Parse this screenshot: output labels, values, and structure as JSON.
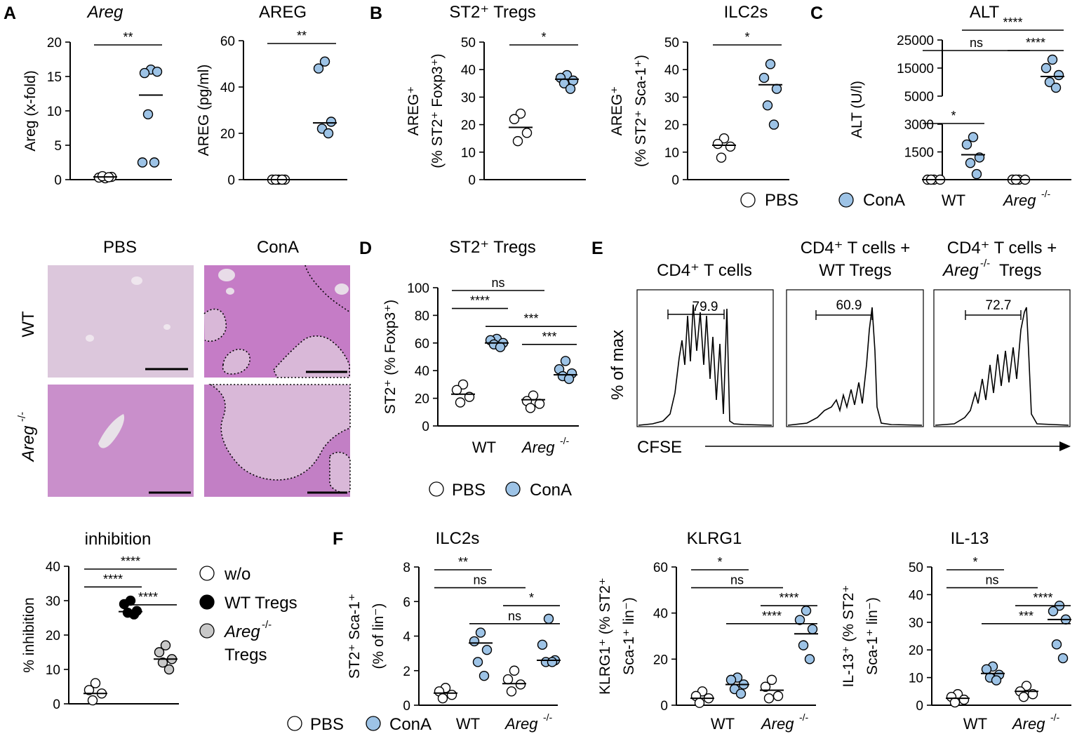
{
  "panel_labels": {
    "A": "A",
    "B": "B",
    "C": "C",
    "D": "D",
    "E": "E",
    "F": "F"
  },
  "legend": {
    "pbs": "PBS",
    "cona": "ConA",
    "wo": "w/o",
    "wt_tregs": "WT Tregs",
    "areg_tregs_1": "Areg",
    "areg_tregs_sup": "-/-",
    "areg_tregs_2": "Tregs"
  },
  "group_labels": {
    "wt": "WT",
    "areg": "Areg",
    "ko": "-/-"
  },
  "histology": {
    "col_pbs": "PBS",
    "col_cona": "ConA",
    "row_wt": "WT",
    "row_areg": "Areg",
    "row_areg_sup": "-/-"
  },
  "colors": {
    "pbs": "#ffffff",
    "cona": "#9dc3e6",
    "wt_tregs": "#000000",
    "areg_tregs": "#c8c8c8",
    "he_pink": "#d9b8d8",
    "he_dark": "#c285c8"
  },
  "flow": {
    "titles": {
      "p1": "CD4⁺ T cells",
      "p2a": "CD4⁺ T cells +",
      "p2b": "WT Tregs",
      "p3a": "CD4⁺ T cells +",
      "p3b": "Areg",
      "p3sup": "-/-",
      "p3c": "Tregs"
    },
    "gates": [
      "79.9",
      "60.9",
      "72.7"
    ],
    "ylabel": "% of max",
    "xlabel": "CFSE"
  },
  "chart_data": [
    {
      "id": "a_areg_mrna",
      "type": "scatter",
      "title": "Areg",
      "ylabel": "Areg (x-fold)",
      "ylim": [
        0,
        20
      ],
      "yticks": [
        0,
        5,
        10,
        15,
        20
      ],
      "groups": [
        {
          "name": "PBS",
          "values": [
            0.2,
            0.3,
            0.4,
            0.5,
            0.35
          ],
          "mean": 0.4
        },
        {
          "name": "ConA",
          "values": [
            16,
            15.5,
            15.7,
            9.5,
            2.5,
            2.5
          ],
          "mean": 12.3
        }
      ],
      "sig": [
        {
          "from": 0,
          "to": 1,
          "label": "**"
        }
      ]
    },
    {
      "id": "a_areg_protein",
      "type": "scatter",
      "title": "AREG",
      "ylabel": "AREG (pg/ml)",
      "ylim": [
        0,
        60
      ],
      "yticks": [
        0,
        20,
        40,
        60
      ],
      "groups": [
        {
          "name": "PBS",
          "values": [
            0,
            0,
            0,
            0,
            0
          ],
          "mean": 0
        },
        {
          "name": "ConA",
          "values": [
            51,
            48,
            25,
            22,
            20
          ],
          "mean": 24.5
        }
      ],
      "sig": [
        {
          "from": 0,
          "to": 1,
          "label": "**"
        }
      ]
    },
    {
      "id": "b_st2_tregs",
      "type": "scatter",
      "title": "ST2⁺ Tregs",
      "ylabel_1": "AREG⁺",
      "ylabel_2": "(% ST2⁺ Foxp3⁺)",
      "ylim": [
        0,
        50
      ],
      "yticks": [
        0,
        10,
        20,
        30,
        40,
        50
      ],
      "groups": [
        {
          "name": "PBS",
          "values": [
            24,
            22,
            17,
            14
          ],
          "mean": 19
        },
        {
          "name": "ConA",
          "values": [
            38,
            37,
            36,
            35,
            33
          ],
          "mean": 36.5
        }
      ],
      "sig": [
        {
          "from": 0,
          "to": 1,
          "label": "*"
        }
      ]
    },
    {
      "id": "b_ilc2s",
      "type": "scatter",
      "title": "ILC2s",
      "ylabel_1": "AREG⁺",
      "ylabel_2": "(% ST2⁺ Sca-1⁺)",
      "ylim": [
        0,
        50
      ],
      "yticks": [
        0,
        10,
        20,
        30,
        40,
        50
      ],
      "groups": [
        {
          "name": "PBS",
          "values": [
            15,
            13,
            12,
            8
          ],
          "mean": 12.5
        },
        {
          "name": "ConA",
          "values": [
            42,
            37,
            33,
            27,
            20
          ],
          "mean": 34.5
        }
      ],
      "sig": [
        {
          "from": 0,
          "to": 1,
          "label": "*"
        }
      ]
    },
    {
      "id": "c_alt",
      "type": "scatter",
      "title": "ALT",
      "ylabel": "ALT (U/l)",
      "yscale": "broken",
      "yticks": [
        0,
        1500,
        3000,
        5000,
        15000,
        25000
      ],
      "groups": [
        {
          "name": "WT PBS",
          "values": [
            0,
            0,
            0,
            0
          ],
          "mean": 0
        },
        {
          "name": "WT ConA",
          "values": [
            2300,
            1900,
            1200,
            900,
            300
          ],
          "mean": 1350
        },
        {
          "name": "Areg-/- PBS",
          "values": [
            0,
            0,
            0,
            0
          ],
          "mean": 0
        },
        {
          "name": "Areg-/- ConA",
          "values": [
            18000,
            15000,
            12500,
            10000,
            8000
          ],
          "mean": 12000
        }
      ],
      "sig": [
        {
          "from": 0,
          "to": 1,
          "label": "*"
        },
        {
          "from": 0,
          "to": 2,
          "label": "ns"
        },
        {
          "from": 2,
          "to": 3,
          "label": "****"
        },
        {
          "from": 1,
          "to": 3,
          "label": "****"
        }
      ]
    },
    {
      "id": "d_st2_tregs",
      "type": "scatter",
      "title": "ST2⁺ Tregs",
      "ylabel": "ST2⁺ (% Foxp3⁺)",
      "ylim": [
        0,
        100
      ],
      "yticks": [
        0,
        20,
        40,
        60,
        80,
        100
      ],
      "groups": [
        {
          "name": "WT PBS",
          "values": [
            30,
            26,
            21,
            17
          ],
          "mean": 23
        },
        {
          "name": "WT ConA",
          "values": [
            63,
            62,
            60,
            59,
            57
          ],
          "mean": 60
        },
        {
          "name": "Areg-/- PBS",
          "values": [
            22,
            18,
            16,
            13
          ],
          "mean": 19
        },
        {
          "name": "Areg-/- ConA",
          "values": [
            47,
            41,
            38,
            36,
            34
          ],
          "mean": 37
        }
      ],
      "sig": [
        {
          "from": 0,
          "to": 2,
          "label": "ns"
        },
        {
          "from": 0,
          "to": 1,
          "label": "****"
        },
        {
          "from": 1,
          "to": 3,
          "label": "***"
        },
        {
          "from": 2,
          "to": 3,
          "label": "***"
        }
      ]
    },
    {
      "id": "e_inhibition",
      "type": "scatter",
      "title": "inhibition",
      "ylabel": "% inhibition",
      "ylim": [
        0,
        40
      ],
      "yticks": [
        0,
        10,
        20,
        30,
        40
      ],
      "groups": [
        {
          "name": "w/o",
          "values": [
            6,
            4,
            3,
            1
          ],
          "mean": 3
        },
        {
          "name": "WT Tregs",
          "values": [
            30,
            29,
            27,
            26.5,
            26
          ],
          "mean": 26.8
        },
        {
          "name": "Areg-/- Tregs",
          "values": [
            17,
            15,
            13,
            12,
            10
          ],
          "mean": 13
        }
      ],
      "sig": [
        {
          "from": 0,
          "to": 2,
          "label": "****"
        },
        {
          "from": 0,
          "to": 1,
          "label": "****"
        },
        {
          "from": 1,
          "to": 2,
          "label": "****"
        }
      ]
    },
    {
      "id": "f_ilc2s",
      "type": "scatter",
      "title": "ILC2s",
      "ylabel_1": "ST2⁺ Sca-1⁺",
      "ylabel_2": "(% of lin⁻)",
      "ylim": [
        0,
        8
      ],
      "yticks": [
        0,
        2,
        4,
        6,
        8
      ],
      "groups": [
        {
          "name": "WT PBS",
          "values": [
            1,
            0.8,
            0.6,
            0.4
          ],
          "mean": 0.7
        },
        {
          "name": "WT ConA",
          "values": [
            4.2,
            3.7,
            3.2,
            2.5,
            1.7
          ],
          "mean": 3.6
        },
        {
          "name": "Areg-/- PBS",
          "values": [
            2,
            1.5,
            1.2,
            0.8
          ],
          "mean": 1.25
        },
        {
          "name": "Areg-/- ConA",
          "values": [
            5,
            3.5,
            2.6,
            2.5,
            2.5
          ],
          "mean": 2.6
        }
      ],
      "sig": [
        {
          "from": 0,
          "to": 1,
          "label": "**"
        },
        {
          "from": 0,
          "to": 2,
          "label": "ns"
        },
        {
          "from": 2,
          "to": 3,
          "label": "*"
        },
        {
          "from": 1,
          "to": 3,
          "label": "ns"
        }
      ]
    },
    {
      "id": "f_klrg1",
      "type": "scatter",
      "title": "KLRG1",
      "ylabel_1": "KLRG1⁺ (% ST2⁺",
      "ylabel_2": "Sca-1⁺ lin⁻)",
      "ylim": [
        0,
        60
      ],
      "yticks": [
        0,
        20,
        40,
        60
      ],
      "groups": [
        {
          "name": "WT PBS",
          "values": [
            6,
            4,
            3,
            1
          ],
          "mean": 3
        },
        {
          "name": "WT ConA",
          "values": [
            12,
            11,
            9,
            7,
            5
          ],
          "mean": 9
        },
        {
          "name": "Areg-/- PBS",
          "values": [
            11,
            8,
            4,
            3
          ],
          "mean": 6.5
        },
        {
          "name": "Areg-/- ConA",
          "values": [
            41,
            37,
            33,
            26,
            20
          ],
          "mean": 31
        }
      ],
      "sig": [
        {
          "from": 0,
          "to": 1,
          "label": "*"
        },
        {
          "from": 0,
          "to": 2,
          "label": "ns"
        },
        {
          "from": 2,
          "to": 3,
          "label": "****"
        },
        {
          "from": 1,
          "to": 3,
          "label": "****"
        }
      ]
    },
    {
      "id": "f_il13",
      "type": "scatter",
      "title": "IL-13",
      "ylabel_1": "IL-13⁺ (% ST2⁺",
      "ylabel_2": "Sca-1⁺ lin⁻)",
      "ylim": [
        0,
        50
      ],
      "yticks": [
        0,
        10,
        20,
        30,
        40,
        50
      ],
      "groups": [
        {
          "name": "WT PBS",
          "values": [
            4,
            3,
            2,
            1
          ],
          "mean": 2.5
        },
        {
          "name": "WT ConA",
          "values": [
            14,
            13,
            11,
            10,
            9
          ],
          "mean": 11.5
        },
        {
          "name": "Areg-/- PBS",
          "values": [
            7,
            5,
            4,
            3
          ],
          "mean": 5
        },
        {
          "name": "Areg-/- ConA",
          "values": [
            36,
            34,
            31,
            22,
            17
          ],
          "mean": 31
        }
      ],
      "sig": [
        {
          "from": 0,
          "to": 1,
          "label": "*"
        },
        {
          "from": 0,
          "to": 2,
          "label": "ns"
        },
        {
          "from": 2,
          "to": 3,
          "label": "****"
        },
        {
          "from": 1,
          "to": 3,
          "label": "***"
        }
      ]
    }
  ]
}
